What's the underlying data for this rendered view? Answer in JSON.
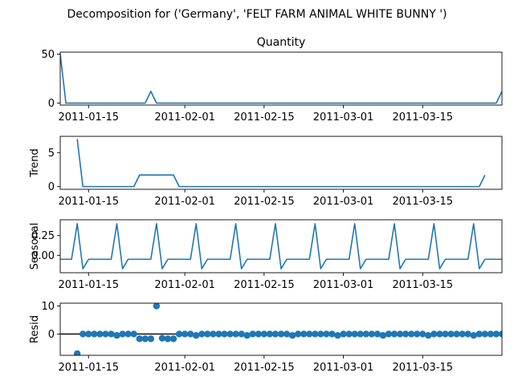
{
  "suptitle": "Decomposition for ('Germany', 'FELT FARM ANIMAL WHITE BUNNY ')",
  "colors": {
    "line": "#1f77b4",
    "axis": "#000000",
    "zero_line": "#000000"
  },
  "x_tick_labels": [
    "2011-01-15",
    "2011-02-01",
    "2011-02-15",
    "2011-03-01",
    "2011-03-15"
  ],
  "chart_data": [
    {
      "type": "line",
      "title": "Quantity",
      "ylabel": "",
      "xlim": [
        "2011-01-10",
        "2011-03-29"
      ],
      "ylim": [
        -2,
        52
      ],
      "y_ticks": [
        0,
        50
      ],
      "x": [
        "2011-01-10",
        "2011-01-11",
        "2011-01-25",
        "2011-01-26",
        "2011-01-27",
        "2011-03-28",
        "2011-03-29"
      ],
      "values": [
        50,
        0,
        0,
        12,
        0,
        0,
        12
      ]
    },
    {
      "type": "line",
      "title": "",
      "ylabel": "Trend",
      "xlim": [
        "2011-01-10",
        "2011-03-29"
      ],
      "ylim": [
        -0.4,
        7.4
      ],
      "y_ticks": [
        0,
        5
      ],
      "x": [
        "2011-01-13",
        "2011-01-14",
        "2011-01-23",
        "2011-01-24",
        "2011-01-30",
        "2011-01-31",
        "2011-03-25",
        "2011-03-26"
      ],
      "values": [
        7.0,
        0.0,
        0.0,
        1.7,
        1.7,
        0.0,
        0.0,
        1.7
      ]
    },
    {
      "type": "line",
      "title": "",
      "ylabel": "Seasonal",
      "xlim": [
        "2011-01-10",
        "2011-03-29"
      ],
      "ylim": [
        -0.22,
        0.45
      ],
      "y_ticks": [
        0.0,
        0.25
      ],
      "period_start": "2011-01-10",
      "period_pattern": [
        -0.05,
        -0.05,
        -0.05,
        0.4,
        -0.17,
        -0.05,
        -0.05
      ],
      "x_end": "2011-03-29"
    },
    {
      "type": "scatter",
      "title": "",
      "ylabel": "Resid",
      "xlim": [
        "2011-01-10",
        "2011-03-29"
      ],
      "ylim": [
        -7.6,
        11
      ],
      "y_ticks": [
        0,
        10
      ],
      "x_start": "2011-01-13",
      "values": [
        -7,
        0,
        0,
        0,
        0,
        0,
        0,
        -0.5,
        0,
        0,
        0,
        -1.7,
        -1.7,
        -1.7,
        10,
        -1.5,
        -1.7,
        -1.7,
        0,
        0,
        0,
        -0.5,
        0,
        0,
        0,
        0,
        0,
        0,
        0,
        0,
        -0.5,
        0,
        0,
        0,
        0,
        0,
        0,
        0,
        -0.5,
        0,
        0,
        0,
        0,
        0,
        0,
        0,
        -0.5,
        0,
        0,
        0,
        0,
        0,
        0,
        0,
        -0.5,
        0,
        0,
        0,
        0,
        0,
        0,
        0,
        -0.5,
        0,
        0,
        0,
        0,
        0,
        0,
        0,
        -0.5,
        0,
        0,
        0,
        0,
        0,
        0,
        0,
        -0.5,
        0,
        0,
        0,
        0,
        0,
        0,
        0,
        -0.5,
        0,
        0,
        0,
        0,
        0,
        0,
        0,
        -0.5,
        -1.5
      ]
    }
  ]
}
